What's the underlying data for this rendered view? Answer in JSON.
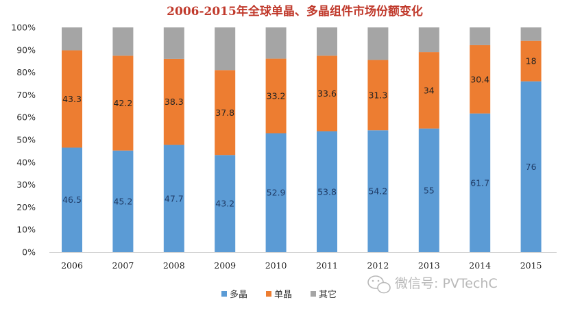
{
  "chart_data": {
    "type": "bar",
    "stacked": true,
    "title": "2006-2015年全球单晶、多晶组件市场份额变化",
    "categories": [
      "2006",
      "2007",
      "2008",
      "2009",
      "2010",
      "2011",
      "2012",
      "2013",
      "2014",
      "2015"
    ],
    "series": [
      {
        "name": "多晶",
        "color": "#5b9bd5",
        "values": [
          46.5,
          45.2,
          47.7,
          43.2,
          52.9,
          53.8,
          54.2,
          55,
          61.7,
          76
        ]
      },
      {
        "name": "单晶",
        "color": "#ed7d31",
        "values": [
          43.3,
          42.2,
          38.3,
          37.8,
          33.2,
          33.6,
          31.3,
          34,
          30.4,
          18
        ]
      },
      {
        "name": "其它",
        "color": "#a5a5a5",
        "values": [
          10.2,
          12.6,
          14.0,
          19.0,
          13.9,
          12.6,
          14.5,
          11.0,
          7.9,
          6.0
        ]
      }
    ],
    "data_labels": [
      [
        "46.5",
        "45.2",
        "47.7",
        "43.2",
        "52.9",
        "53.8",
        "54.2",
        "55",
        "61.7",
        "76"
      ],
      [
        "43.3",
        "42.2",
        "38.3",
        "37.8",
        "33.2",
        "33.6",
        "31.3",
        "34",
        "30.4",
        "18"
      ]
    ],
    "y_ticks": [
      "0%",
      "10%",
      "20%",
      "30%",
      "40%",
      "50%",
      "60%",
      "70%",
      "80%",
      "90%",
      "100%"
    ],
    "ylim": [
      0,
      100
    ],
    "grid": false,
    "legend_position": "bottom"
  },
  "colors": {
    "title": "#c0392b",
    "multi": "#5b9bd5",
    "mono": "#ed7d31",
    "other": "#a5a5a5"
  },
  "watermark": {
    "icon": "wechat-icon",
    "text": "微信号: PVTechC"
  }
}
